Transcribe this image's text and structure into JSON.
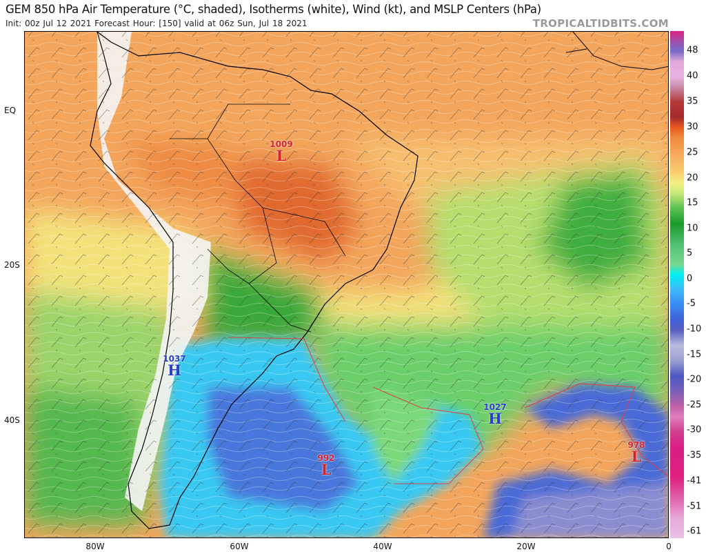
{
  "header": {
    "title": "GEM 850 hPa Air Temperature (°C, shaded), Isotherms (white), Wind (kt), and MSLP Centers (hPa)",
    "subtitle": "Init: 00z Jul 12 2021   Forecast Hour: [150]   valid at 06z Sun, Jul 18 2021",
    "brand": "TROPICALTIDBITS.COM"
  },
  "colorbar": {
    "units": "°C",
    "labels": [
      "48",
      "40",
      "35",
      "30",
      "25",
      "20",
      "15",
      "10",
      "5",
      "0",
      "-5",
      "-10",
      "-15",
      "-20",
      "-25",
      "-30",
      "-35",
      "-41",
      "-51",
      "-61"
    ]
  },
  "axes": {
    "lat_labels": [
      "EQ",
      "20S",
      "40S"
    ],
    "lon_labels": [
      "80W",
      "60W",
      "40W",
      "20W",
      "0"
    ]
  },
  "pressure_centers": [
    {
      "type": "L",
      "value": "1009"
    },
    {
      "type": "H",
      "value": "1037"
    },
    {
      "type": "L",
      "value": "992"
    },
    {
      "type": "H",
      "value": "1027"
    },
    {
      "type": "L",
      "value": "978"
    }
  ],
  "colors": {
    "low": "#d8232a",
    "high": "#2a3ec8"
  }
}
